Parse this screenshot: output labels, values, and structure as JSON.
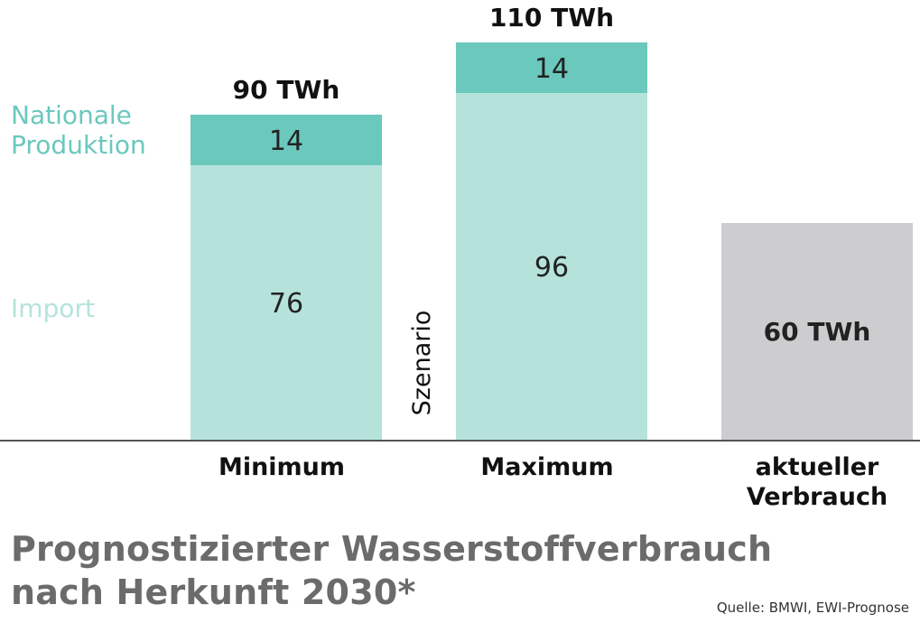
{
  "chart_data": {
    "type": "bar",
    "stacked": true,
    "categories": [
      "Minimum",
      "Maximum",
      "aktueller Verbrauch"
    ],
    "category_label_lines": [
      [
        "Minimum"
      ],
      [
        "Maximum"
      ],
      [
        "aktueller",
        "Verbrauch"
      ]
    ],
    "series": [
      {
        "name": "Import",
        "values": [
          76,
          96,
          null
        ],
        "color": "#b5e3dc"
      },
      {
        "name": "Nationale Produktion",
        "values": [
          14,
          14,
          null
        ],
        "color": "#6bc8bd"
      },
      {
        "name": "",
        "values": [
          null,
          null,
          60
        ],
        "color": "#cdcdcf"
      }
    ],
    "segment_labels": [
      [
        "76",
        "14"
      ],
      [
        "96",
        "14"
      ],
      [
        "60 TWh"
      ]
    ],
    "total_labels": [
      "90 TWh",
      "110 TWh",
      ""
    ],
    "legend_lines": [
      [
        "Nationale",
        "Produktion"
      ],
      [
        "Import"
      ]
    ],
    "group_annotation": "Szenario",
    "title_lines": [
      "Prognostizierter Wasserstoffverbrauch",
      "nach Herkunft 2030*"
    ],
    "source": "Quelle: BMWI, EWI-Prognose",
    "ylim": [
      0,
      110
    ],
    "grid": false,
    "axis_color": "#555555"
  }
}
